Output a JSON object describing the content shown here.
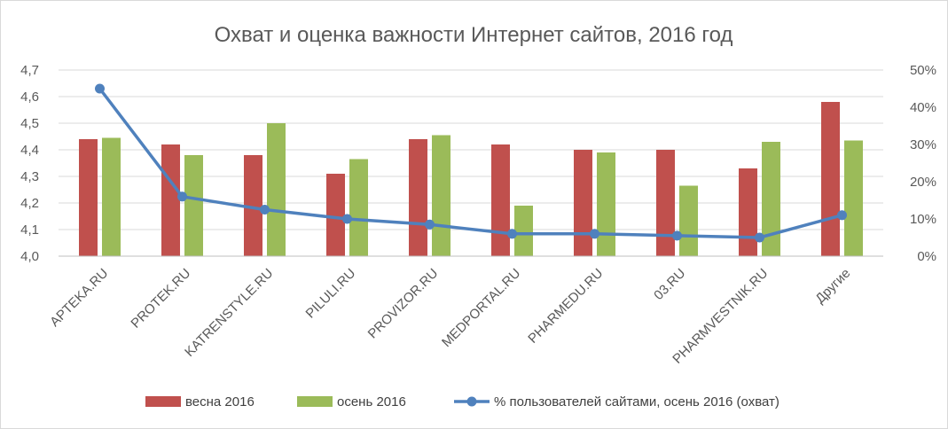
{
  "chart_data": {
    "type": "bar",
    "title": "Охват и оценка важности Интернет сайтов, 2016 год",
    "categories": [
      "APTEKA.RU",
      "PROTEK.RU",
      "KATRENSTYLE.RU",
      "PILULI.RU",
      "PROVIZOR.RU",
      "MEDPORTAL.RU",
      "PHARMEDU.RU",
      "03.RU",
      "PHARMVESTNIK.RU",
      "Другие"
    ],
    "series": [
      {
        "name": "весна 2016",
        "type": "bar",
        "axis": "left",
        "color": "#C0504D",
        "values": [
          4.44,
          4.42,
          4.38,
          4.31,
          4.44,
          4.42,
          4.4,
          4.4,
          4.33,
          4.58
        ]
      },
      {
        "name": "осень 2016",
        "type": "bar",
        "axis": "left",
        "color": "#9BBB59",
        "values": [
          4.445,
          4.38,
          4.5,
          4.365,
          4.455,
          4.19,
          4.39,
          4.265,
          4.43,
          4.435
        ]
      },
      {
        "name": "% пользователей сайтами, осень 2016 (охват)",
        "type": "line",
        "axis": "right",
        "color": "#4F81BD",
        "values": [
          45,
          16,
          12.5,
          10,
          8.5,
          6,
          6,
          5.5,
          5,
          11
        ]
      }
    ],
    "y_left": {
      "min": 4.0,
      "max": 4.7,
      "step": 0.1,
      "tick_labels": [
        "4,0",
        "4,1",
        "4,2",
        "4,3",
        "4,4",
        "4,5",
        "4,6",
        "4,7"
      ]
    },
    "y_right": {
      "min": 0,
      "max": 50,
      "step": 10,
      "tick_labels": [
        "0%",
        "10%",
        "20%",
        "30%",
        "40%",
        "50%"
      ]
    },
    "grid": "horizontal",
    "legend": "bottom"
  }
}
